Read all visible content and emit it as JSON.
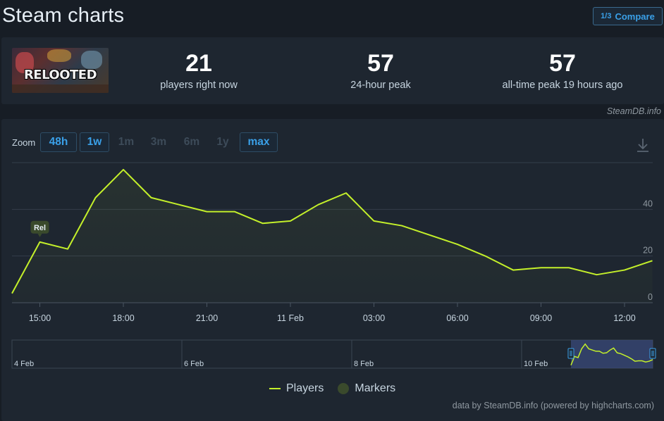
{
  "header": {
    "title": "Steam charts",
    "compare_icon": "1/3",
    "compare_label": "Compare"
  },
  "game": {
    "thumb_text": "RELOOTED"
  },
  "stats": {
    "now_value": "21",
    "now_label": "players right now",
    "peak24_value": "57",
    "peak24_label": "24-hour peak",
    "alltime_value": "57",
    "alltime_label": "all-time peak 19 hours ago"
  },
  "credit_top": "SteamDB.info",
  "zoom": {
    "label": "Zoom",
    "options": [
      {
        "label": "48h",
        "active": true
      },
      {
        "label": "1w",
        "active": true
      },
      {
        "label": "1m",
        "active": false
      },
      {
        "label": "3m",
        "active": false
      },
      {
        "label": "6m",
        "active": false
      },
      {
        "label": "1y",
        "active": false
      },
      {
        "label": "max",
        "active": true
      }
    ]
  },
  "chart_data": {
    "type": "line",
    "x_ticks": [
      "15:00",
      "18:00",
      "21:00",
      "11 Feb",
      "03:00",
      "06:00",
      "09:00",
      "12:00"
    ],
    "y_ticks": [
      0,
      20,
      40
    ],
    "ylim": [
      0,
      60
    ],
    "series": [
      {
        "name": "Players",
        "color": "#c4f02a",
        "values": [
          4,
          26,
          23,
          45,
          57,
          45,
          42,
          39,
          39,
          34,
          35,
          42,
          47,
          35,
          33,
          29,
          25,
          20,
          14,
          15,
          15,
          12,
          14,
          18
        ]
      }
    ],
    "markers": [
      {
        "label": "Rel",
        "index": 1
      }
    ],
    "navigator_labels": [
      "4 Feb",
      "6 Feb",
      "8 Feb",
      "10 Feb"
    ],
    "legend": [
      {
        "name": "Players",
        "color": "#c4f02a"
      },
      {
        "name": "Markers",
        "color": "#3a4a2c"
      }
    ]
  },
  "credit_bottom": "data by SteamDB.info (powered by highcharts.com)"
}
